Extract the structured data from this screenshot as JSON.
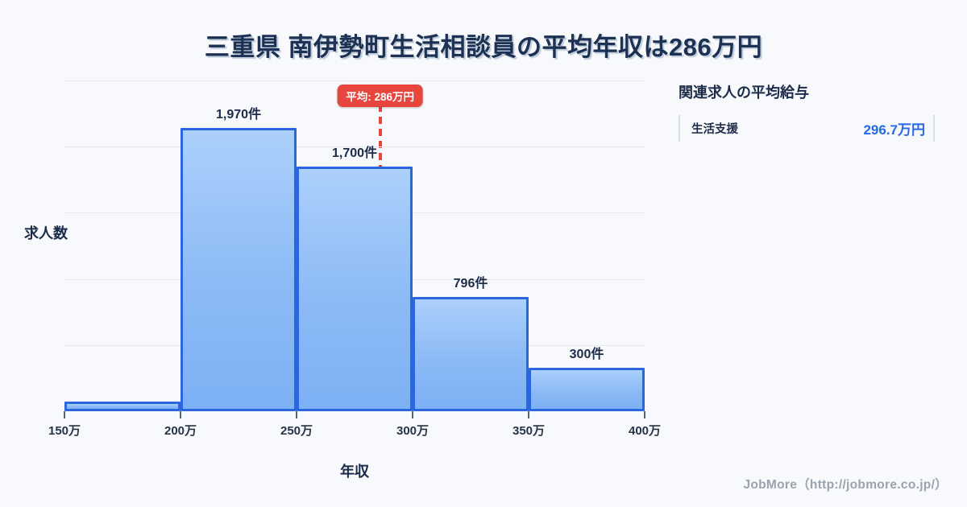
{
  "page": {
    "title": "三重県 南伊勢町生活相談員の平均年収は286万円",
    "footer_credit": "JobMore（http://jobmore.co.jp/）"
  },
  "chart_data": {
    "type": "bar",
    "title": "三重県 南伊勢町生活相談員の平均年収は286万円",
    "xlabel": "年収",
    "ylabel": "求人数",
    "xlim": [
      150,
      400
    ],
    "ylim": [
      0,
      2300
    ],
    "grid": true,
    "grid_divisions": 5,
    "x_ticks": [
      "150万",
      "200万",
      "250万",
      "300万",
      "350万",
      "400万"
    ],
    "bins": [
      {
        "range": "150万-200万",
        "value": 65,
        "label": ""
      },
      {
        "range": "200万-250万",
        "value": 1970,
        "label": "1,970件"
      },
      {
        "range": "250万-300万",
        "value": 1700,
        "label": "1,700件"
      },
      {
        "range": "300万-350万",
        "value": 796,
        "label": "796件"
      },
      {
        "range": "350万-400万",
        "value": 300,
        "label": "300件"
      }
    ],
    "average": {
      "value": 286,
      "label": "平均: 286万円"
    }
  },
  "side_panel": {
    "heading": "関連求人の平均給与",
    "rows": [
      {
        "label": "生活支援",
        "value": "296.7万円"
      }
    ]
  },
  "colors": {
    "background": "#f7f9fc",
    "title_text": "#1c3153",
    "bar_fill_top": "#abd0fa",
    "bar_fill_bottom": "#7db0f4",
    "bar_border": "#2a66dd",
    "gridline": "#e4e9f0",
    "tick_text": "#273349",
    "average_red": "#e8453f",
    "value_blue": "#2569e8",
    "divider": "#d7dfe9",
    "footer_gray": "#9aa3ae"
  }
}
